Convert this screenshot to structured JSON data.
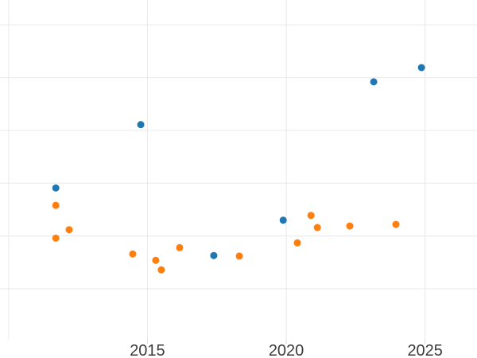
{
  "figure": {
    "background_color": "#ffffff",
    "grid_color": "#e8e8e8",
    "tick_mark_color": "#d9d9d9",
    "tick_label_color": "#3b3b3b"
  },
  "chart_data": {
    "type": "scatter",
    "title": "",
    "xlabel": "",
    "ylabel": "",
    "grid": true,
    "legend_position": "none",
    "xlim": [
      2009.69,
      2026.87
    ],
    "ylim": [
      -0.31,
      6.47
    ],
    "x_gridlines": [
      2010,
      2015,
      2020,
      2025
    ],
    "y_gridlines": [
      1,
      2,
      3,
      4,
      5,
      6
    ],
    "x_ticks": [
      2015,
      2020,
      2025
    ],
    "x_tick_labels": [
      "2015",
      "2020",
      "2025"
    ],
    "y_tick_labels": [],
    "series": [
      {
        "name": "blue",
        "color": "#1f77b4",
        "marker": "circle",
        "marker_size": 9,
        "points": [
          [
            2011.7,
            2.91
          ],
          [
            2014.76,
            4.11
          ],
          [
            2017.39,
            1.63
          ],
          [
            2019.89,
            2.3
          ],
          [
            2023.15,
            4.92
          ],
          [
            2024.87,
            5.19
          ]
        ]
      },
      {
        "name": "orange",
        "color": "#ff7f0e",
        "marker": "circle",
        "marker_size": 9,
        "points": [
          [
            2011.7,
            2.58
          ],
          [
            2012.18,
            2.12
          ],
          [
            2011.7,
            1.96
          ],
          [
            2014.47,
            1.66
          ],
          [
            2015.3,
            1.54
          ],
          [
            2015.5,
            1.36
          ],
          [
            2016.16,
            1.78
          ],
          [
            2018.31,
            1.62
          ],
          [
            2020.4,
            1.87
          ],
          [
            2020.89,
            2.39
          ],
          [
            2021.12,
            2.16
          ],
          [
            2022.29,
            2.19
          ],
          [
            2023.95,
            2.22
          ]
        ]
      }
    ]
  }
}
